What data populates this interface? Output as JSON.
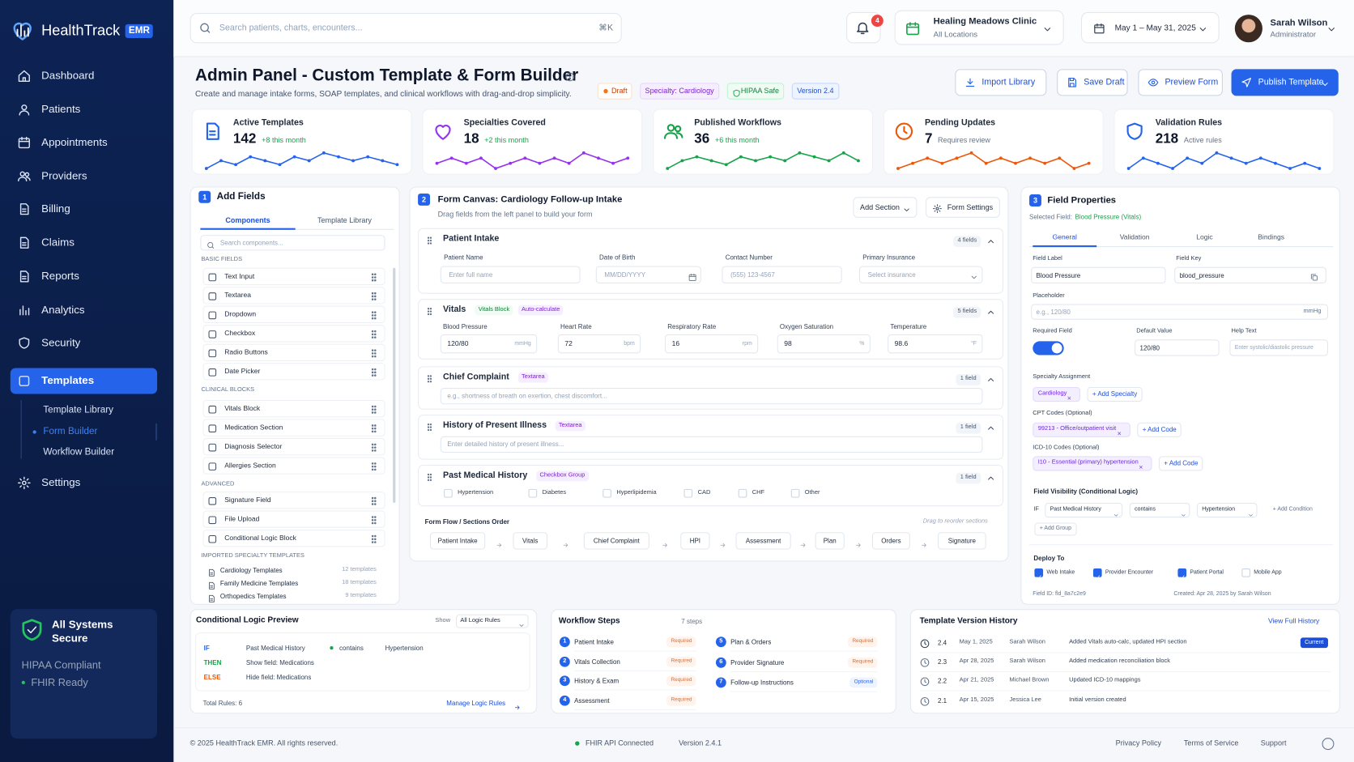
{
  "sidebar": {
    "brand": "HealthTrack",
    "badge": "EMR",
    "nav": [
      "Dashboard",
      "Patients",
      "Appointments",
      "Providers",
      "Billing",
      "Claims",
      "Reports",
      "Analytics",
      "Security",
      "Templates"
    ],
    "subnav": [
      "Template Library",
      "Form Builder",
      "Workflow Builder"
    ],
    "settings": "Settings",
    "status": {
      "title": "All Systems Secure",
      "items": [
        "HIPAA Compliant",
        "FHIR Ready"
      ]
    }
  },
  "topbar": {
    "search": "Search patients, charts, encounters...",
    "shortcut": "⌘K",
    "notifications": 4,
    "clinic": "Healing Meadows Clinic",
    "location": "All Locations",
    "date_range": "May 1 – May 31, 2025",
    "user": "Sarah Wilson",
    "role": "Administrator"
  },
  "header": {
    "title": "Admin Panel - Custom Template & Form Builder",
    "subtitle": "Create and manage intake forms, SOAP templates, and clinical workflows with drag-and-drop simplicity.",
    "badges": [
      "Draft",
      "Specialty: Cardiology",
      "HIPAA Safe",
      "Version 2.4"
    ],
    "buttons": [
      "Import Library",
      "Save Draft",
      "Preview Form",
      "Publish Template"
    ]
  },
  "stats": [
    {
      "label": "Active Templates",
      "value": 142,
      "delta": "+8 this month",
      "color": "#2563eb",
      "trend": [
        3,
        5,
        4,
        6,
        5,
        4,
        6,
        5,
        7,
        6,
        5,
        6,
        5,
        4
      ]
    },
    {
      "label": "Specialties Covered",
      "value": 18,
      "delta": "+2 this month",
      "color": "#9333ea",
      "trend": [
        5,
        6,
        5,
        6,
        4,
        5,
        6,
        5,
        6,
        5,
        7,
        6,
        5,
        6
      ]
    },
    {
      "label": "Published Workflows",
      "value": 36,
      "delta": "+6 this month",
      "color": "#16a34a",
      "trend": [
        3,
        5,
        6,
        5,
        4,
        6,
        5,
        6,
        5,
        7,
        6,
        5,
        7,
        5
      ]
    },
    {
      "label": "Pending Updates",
      "value": 7,
      "delta": "Requires review",
      "color": "#ea580c",
      "trend": [
        4,
        5,
        6,
        5,
        6,
        7,
        5,
        6,
        5,
        6,
        5,
        6,
        4,
        5
      ]
    },
    {
      "label": "Validation Rules",
      "value": 218,
      "delta": "Active rules",
      "color": "#2563eb",
      "trend": [
        4,
        6,
        5,
        4,
        6,
        5,
        7,
        6,
        5,
        6,
        5,
        4,
        5,
        4
      ]
    }
  ],
  "add_fields": {
    "step": 1,
    "title": "Add Fields",
    "tabs": [
      "Components",
      "Template Library"
    ],
    "search": "Search components...",
    "groups": [
      {
        "name": "BASIC FIELDS",
        "items": [
          "Text Input",
          "Textarea",
          "Dropdown",
          "Checkbox",
          "Radio Buttons",
          "Date Picker"
        ]
      },
      {
        "name": "CLINICAL BLOCKS",
        "items": [
          "Vitals Block",
          "Medication Section",
          "Diagnosis Selector",
          "Allergies Section"
        ]
      },
      {
        "name": "ADVANCED",
        "items": [
          "Signature Field",
          "File Upload",
          "Conditional Logic Block"
        ]
      }
    ],
    "imported": {
      "name": "IMPORTED SPECIALTY TEMPLATES",
      "items": [
        {
          "name": "Cardiology Templates",
          "count": "12 templates"
        },
        {
          "name": "Family Medicine Templates",
          "count": "18 templates"
        },
        {
          "name": "Orthopedics Templates",
          "count": "9 templates"
        }
      ]
    }
  },
  "canvas": {
    "step": 2,
    "title": "Form Canvas: Cardiology Follow-up Intake",
    "subtitle": "Drag fields from the left panel to build your form",
    "actions": [
      "Add Section",
      "Form Settings"
    ],
    "sections": [
      {
        "title": "Patient Intake",
        "count": "4 fields",
        "fields": [
          {
            "label": "Patient Name",
            "placeholder": "Enter full name"
          },
          {
            "label": "Date of Birth",
            "placeholder": "MM/DD/YYYY"
          },
          {
            "label": "Contact Number",
            "placeholder": "(555) 123-4567"
          },
          {
            "label": "Primary Insurance",
            "placeholder": "Select insurance"
          }
        ]
      },
      {
        "title": "Vitals",
        "tags": [
          "Vitals Block",
          "Auto-calculate"
        ],
        "count": "5 fields",
        "fields": [
          {
            "label": "Blood Pressure",
            "value": "120/80",
            "unit": "mmHg"
          },
          {
            "label": "Heart Rate",
            "value": "72",
            "unit": "bpm"
          },
          {
            "label": "Respiratory Rate",
            "value": "16",
            "unit": "rpm"
          },
          {
            "label": "Oxygen Saturation",
            "value": "98",
            "unit": "%"
          },
          {
            "label": "Temperature",
            "value": "98.6",
            "unit": "°F"
          }
        ]
      },
      {
        "title": "Chief Complaint",
        "tags": [
          "Textarea"
        ],
        "count": "1 field",
        "placeholder": "e.g., shortness of breath on exertion, chest discomfort..."
      },
      {
        "title": "History of Present Illness",
        "tags": [
          "Textarea"
        ],
        "count": "1 field",
        "placeholder": "Enter detailed history of present illness..."
      },
      {
        "title": "Past Medical History",
        "tags": [
          "Checkbox Group"
        ],
        "count": "1 field",
        "options": [
          "Hypertension",
          "Diabetes",
          "Hyperlipidemia",
          "CAD",
          "CHF",
          "Other"
        ]
      }
    ],
    "flow": {
      "title": "Form Flow / Sections Order",
      "hint": "Drag to reorder sections",
      "steps": [
        "Patient Intake",
        "Vitals",
        "Chief Complaint",
        "HPI",
        "Assessment",
        "Plan",
        "Orders",
        "Signature"
      ]
    }
  },
  "properties": {
    "step": 3,
    "title": "Field Properties",
    "selected_label": "Selected Field:",
    "selected": "Blood Pressure (Vitals)",
    "tabs": [
      "General",
      "Validation",
      "Logic",
      "Bindings"
    ],
    "field_label": {
      "label": "Field Label",
      "value": "Blood Pressure"
    },
    "field_key": {
      "label": "Field Key",
      "value": "blood_pressure"
    },
    "placeholder": {
      "label": "Placeholder",
      "value": "e.g., 120/80",
      "unit": "mmHg"
    },
    "required": {
      "label": "Required Field",
      "on": true
    },
    "default": {
      "label": "Default Value",
      "value": "120/80"
    },
    "help": {
      "label": "Help Text",
      "value": "Enter systolic/diastolic pressure"
    },
    "specialty": {
      "label": "Specialty Assignment",
      "chips": [
        "Cardiology"
      ],
      "add": "+ Add Specialty"
    },
    "cpt": {
      "label": "CPT Codes (Optional)",
      "chips": [
        "99213 - Office/outpatient visit"
      ],
      "add": "+ Add Code"
    },
    "icd": {
      "label": "ICD-10 Codes (Optional)",
      "chips": [
        "I10 - Essential (primary) hypertension"
      ],
      "add": "+ Add Code"
    },
    "visibility": {
      "label": "Field Visibility (Conditional Logic)",
      "if": "IF",
      "field": "Past Medical History",
      "op": "contains",
      "value": "Hypertension",
      "add_condition": "+ Add Condition",
      "add_group": "+ Add Group"
    },
    "deploy": {
      "label": "Deploy To",
      "targets": [
        {
          "name": "Web Intake",
          "checked": true
        },
        {
          "name": "Provider Encounter",
          "checked": true
        },
        {
          "name": "Patient Portal",
          "checked": true
        },
        {
          "name": "Mobile App",
          "checked": false
        }
      ]
    },
    "field_id": "Field ID: fld_8a7c2e9",
    "created": "Created: Apr 28, 2025 by Sarah Wilson"
  },
  "logic": {
    "title": "Conditional Logic Preview",
    "show_label": "Show",
    "show_value": "All Logic Rules",
    "rules": [
      [
        "IF",
        "Past Medical History",
        "contains",
        "Hypertension"
      ],
      [
        "THEN",
        "Show field: Medications"
      ],
      [
        "ELSE",
        "Hide field: Medications"
      ]
    ],
    "total": "Total Rules: 6",
    "manage": "Manage Logic Rules"
  },
  "workflow": {
    "title": "Workflow Steps",
    "count": "7 steps",
    "steps": [
      {
        "n": 1,
        "name": "Patient Intake",
        "status": "Required"
      },
      {
        "n": 2,
        "name": "Vitals Collection",
        "status": "Required"
      },
      {
        "n": 3,
        "name": "History & Exam",
        "status": "Required"
      },
      {
        "n": 4,
        "name": "Assessment",
        "status": "Required"
      },
      {
        "n": 5,
        "name": "Plan & Orders",
        "status": "Required"
      },
      {
        "n": 6,
        "name": "Provider Signature",
        "status": "Required"
      },
      {
        "n": 7,
        "name": "Follow-up Instructions",
        "status": "Optional"
      }
    ]
  },
  "history": {
    "title": "Template Version History",
    "link": "View Full History",
    "current_label": "Current",
    "versions": [
      {
        "v": "2.4",
        "date": "May 1, 2025",
        "by": "Sarah Wilson",
        "note": "Added Vitals auto-calc, updated HPI section",
        "current": true
      },
      {
        "v": "2.3",
        "date": "Apr 28, 2025",
        "by": "Sarah Wilson",
        "note": "Added medication reconciliation block",
        "current": false
      },
      {
        "v": "2.2",
        "date": "Apr 21, 2025",
        "by": "Michael Brown",
        "note": "Updated ICD-10 mappings",
        "current": false
      },
      {
        "v": "2.1",
        "date": "Apr 15, 2025",
        "by": "Jessica Lee",
        "note": "Initial version created",
        "current": false
      }
    ]
  },
  "footer": {
    "copyright": "© 2025 HealthTrack EMR. All rights reserved.",
    "status": "FHIR API Connected",
    "version": "Version 2.4.1",
    "links": [
      "Privacy Policy",
      "Terms of Service",
      "Support"
    ]
  }
}
